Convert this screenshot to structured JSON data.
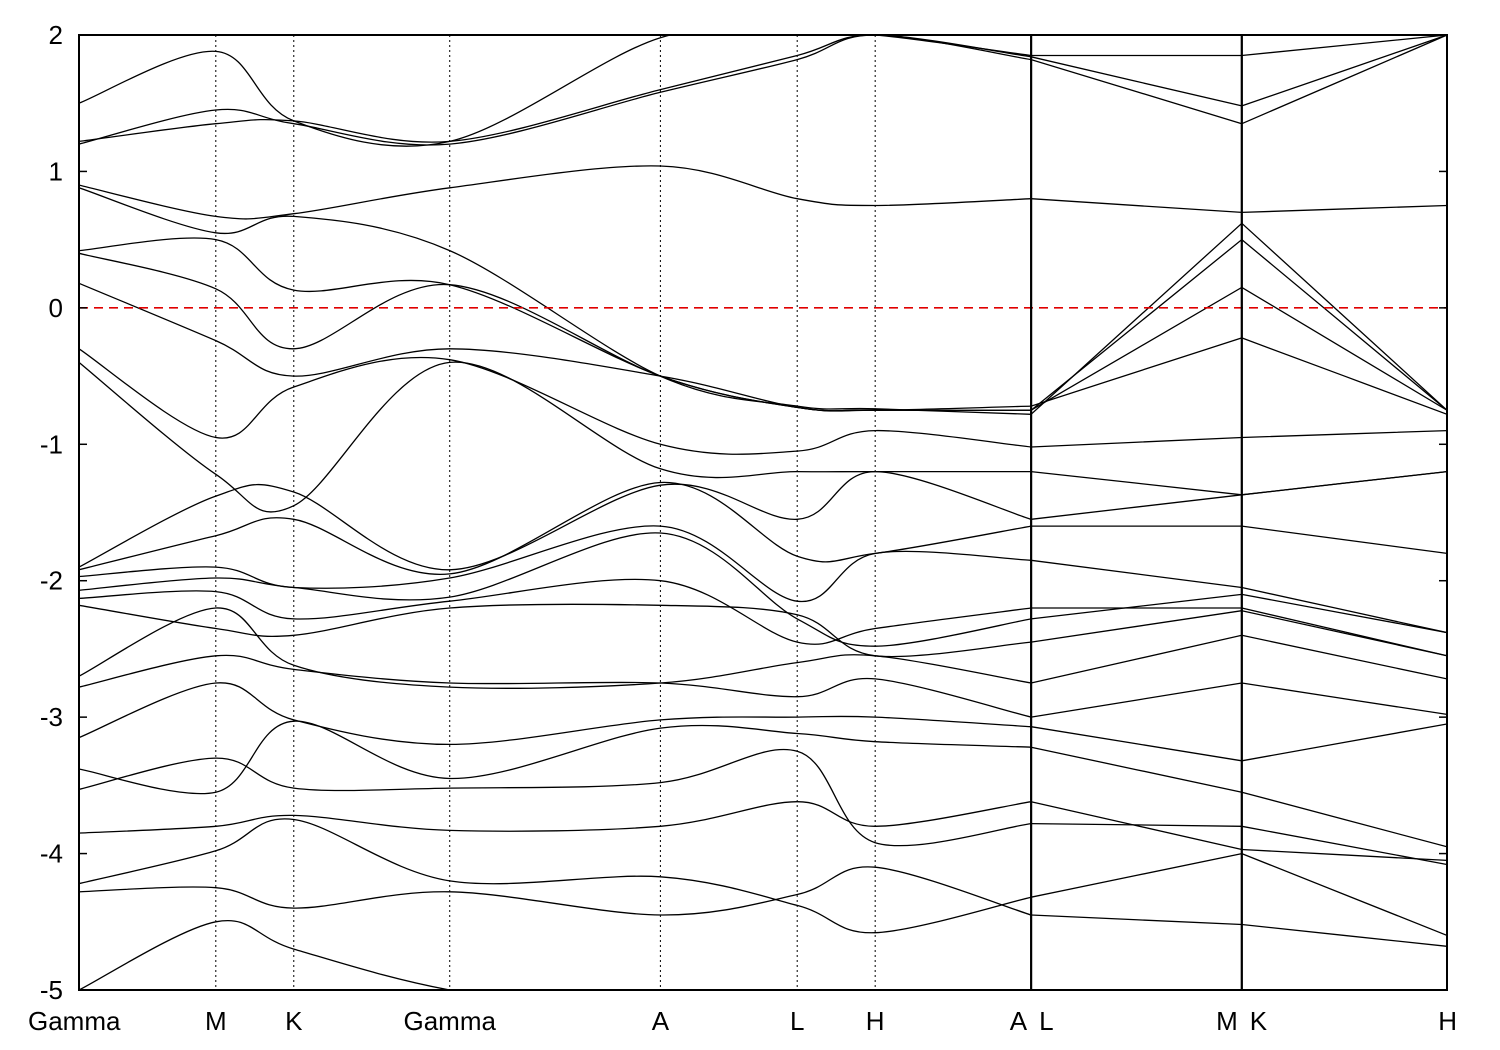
{
  "chart_data": {
    "type": "line",
    "title": "",
    "xlabel": "",
    "ylabel": "",
    "ylim": [
      -5,
      2
    ],
    "y_ticks": [
      2,
      1,
      0,
      -1,
      -2,
      -3,
      -4,
      -5
    ],
    "y_tick_labels": [
      "2",
      "1",
      "0",
      "-1",
      "-2",
      "-3",
      "-4",
      "-5"
    ],
    "fermi_level": 0,
    "fermi_line_color": "#e00000",
    "band_color": "#000000",
    "x_path": [
      {
        "label": "Gamma",
        "pos": 0.0
      },
      {
        "label": "M",
        "pos": 0.1
      },
      {
        "label": "K",
        "pos": 0.157
      },
      {
        "label": "Gamma",
        "pos": 0.271
      },
      {
        "label": "A",
        "pos": 0.425
      },
      {
        "label": "L",
        "pos": 0.525
      },
      {
        "label": "H",
        "pos": 0.582
      },
      {
        "label": "A",
        "pos": 0.696
      },
      {
        "label": "L",
        "pos": 0.696
      },
      {
        "label": "M",
        "pos": 0.85
      },
      {
        "label": "K",
        "pos": 0.85
      },
      {
        "label": "H",
        "pos": 1.0
      }
    ],
    "path_breaks": [
      0.696,
      0.85
    ],
    "band_anchor_positions": [
      0.0,
      0.1,
      0.157,
      0.271,
      0.425,
      0.525,
      0.582,
      0.696,
      0.85,
      1.0
    ],
    "bands": [
      [
        -5.0,
        -4.5,
        -4.7,
        -5.0,
        -5.2,
        -5.2,
        -5.2,
        -5.2,
        -5.2,
        -5.2
      ],
      [
        -4.28,
        -4.25,
        -4.4,
        -4.28,
        -4.45,
        -4.3,
        -4.1,
        -4.45,
        -4.52,
        -4.68
      ],
      [
        -4.22,
        -3.98,
        -3.75,
        -4.2,
        -4.17,
        -4.38,
        -4.58,
        -4.32,
        -4.0,
        -4.6
      ],
      [
        -3.85,
        -3.8,
        -3.72,
        -3.83,
        -3.8,
        -3.62,
        -3.8,
        -3.62,
        -3.97,
        -4.05
      ],
      [
        -3.53,
        -3.3,
        -3.52,
        -3.52,
        -3.48,
        -3.25,
        -3.92,
        -3.78,
        -3.8,
        -4.08
      ],
      [
        -3.38,
        -3.55,
        -3.03,
        -3.45,
        -3.08,
        -3.12,
        -3.18,
        -3.22,
        -3.55,
        -3.95
      ],
      [
        -3.15,
        -2.75,
        -3.02,
        -3.2,
        -3.02,
        -3.0,
        -3.0,
        -3.07,
        -3.32,
        -3.05
      ],
      [
        -2.78,
        -2.55,
        -2.65,
        -2.75,
        -2.75,
        -2.85,
        -2.72,
        -3.0,
        -2.75,
        -2.98
      ],
      [
        -2.7,
        -2.2,
        -2.62,
        -2.78,
        -2.75,
        -2.6,
        -2.55,
        -2.75,
        -2.4,
        -2.72
      ],
      [
        -2.18,
        -2.35,
        -2.4,
        -2.2,
        -2.18,
        -2.25,
        -2.55,
        -2.45,
        -2.22,
        -2.55
      ],
      [
        -2.13,
        -2.08,
        -2.28,
        -2.15,
        -2.0,
        -2.45,
        -2.35,
        -2.2,
        -2.2,
        -2.55
      ],
      [
        -2.07,
        -1.98,
        -2.05,
        -2.12,
        -1.65,
        -2.28,
        -2.48,
        -2.28,
        -2.1,
        -2.38
      ],
      [
        -1.97,
        -1.9,
        -2.05,
        -1.98,
        -1.6,
        -2.15,
        -1.8,
        -1.85,
        -2.05,
        -2.38
      ],
      [
        -1.92,
        -1.67,
        -1.55,
        -1.95,
        -1.28,
        -1.82,
        -1.8,
        -1.6,
        -1.6,
        -1.8
      ],
      [
        -1.9,
        -1.38,
        -1.35,
        -1.92,
        -1.3,
        -1.55,
        -1.2,
        -1.55,
        -1.37,
        -1.2
      ],
      [
        -0.4,
        -1.22,
        -1.45,
        -0.4,
        -1.18,
        -1.2,
        -1.2,
        -1.2,
        -1.37,
        -1.2
      ],
      [
        -0.3,
        -0.95,
        -0.58,
        -0.38,
        -1.0,
        -1.05,
        -0.9,
        -1.02,
        -0.95,
        -0.9
      ],
      [
        0.18,
        -0.24,
        -0.5,
        -0.3,
        -0.5,
        -0.73,
        -0.75,
        -0.72,
        -0.22,
        -0.78
      ],
      [
        0.4,
        0.14,
        -0.3,
        0.17,
        -0.5,
        -0.73,
        -0.75,
        -0.75,
        0.15,
        -0.75
      ],
      [
        0.42,
        0.5,
        0.13,
        0.17,
        -0.5,
        -0.73,
        -0.75,
        -0.75,
        0.5,
        -0.75
      ],
      [
        0.88,
        0.55,
        0.67,
        0.42,
        -0.5,
        -0.72,
        -0.74,
        -0.78,
        0.62,
        -0.75
      ],
      [
        0.9,
        0.67,
        0.69,
        0.88,
        1.04,
        0.8,
        0.75,
        0.8,
        0.7,
        0.75
      ],
      [
        1.2,
        1.45,
        1.35,
        1.2,
        1.58,
        1.82,
        2.0,
        1.82,
        1.35,
        2.0
      ],
      [
        1.22,
        1.35,
        1.37,
        1.22,
        1.6,
        1.85,
        2.0,
        1.84,
        1.48,
        2.0
      ],
      [
        1.5,
        1.88,
        1.37,
        1.22,
        1.98,
        2.0,
        2.0,
        1.85,
        1.85,
        2.0
      ],
      [
        2.0,
        2.0,
        2.0,
        2.0,
        2.0,
        2.0,
        2.0,
        2.0,
        2.0,
        2.0
      ]
    ]
  }
}
